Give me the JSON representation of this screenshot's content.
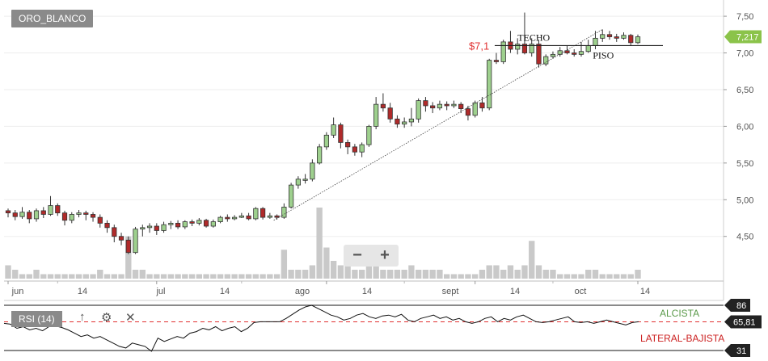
{
  "ticker": "ORO_BLANCO",
  "zoom": {
    "minus": "−",
    "plus": "+"
  },
  "indicator": {
    "label": "RSI (14)",
    "up_icon": "↑",
    "gear_icon": "⚙",
    "close_icon": "✕"
  },
  "colors": {
    "up": "#9ed08e",
    "down": "#b02a2a",
    "volume": "#c9c9c9",
    "price_tag": "#8bc34a",
    "annotation_red": "#e03030",
    "alcista": "#5a9a4a",
    "lateral": "#cc2222"
  },
  "annotations": {
    "techo": "TECHO",
    "piso": "PISO",
    "level_label": "$7,1",
    "alcista": "ALCISTA",
    "lateral": "LATERAL-BAJISTA"
  },
  "chart_data": [
    {
      "type": "candlestick",
      "x_tick_labels": [
        "jun",
        "14",
        "jul",
        "14",
        "ago",
        "14",
        "sept",
        "14",
        "oct",
        "14"
      ],
      "y_ticks": [
        "7,50",
        "7,00",
        "6,50",
        "6,00",
        "5,50",
        "5,00",
        "4,50"
      ],
      "ylim": [
        4.2,
        7.6
      ],
      "last_price": "7,217",
      "horizontal_level": 7.1,
      "candles": [
        [
          4.85,
          4.82,
          4.88,
          4.76
        ],
        [
          4.82,
          4.77,
          4.86,
          4.72
        ],
        [
          4.77,
          4.83,
          4.9,
          4.74
        ],
        [
          4.83,
          4.74,
          4.86,
          4.68
        ],
        [
          4.74,
          4.85,
          4.88,
          4.7
        ],
        [
          4.85,
          4.8,
          4.9,
          4.75
        ],
        [
          4.8,
          4.92,
          5.05,
          4.78
        ],
        [
          4.92,
          4.82,
          4.95,
          4.78
        ],
        [
          4.82,
          4.72,
          4.85,
          4.65
        ],
        [
          4.72,
          4.8,
          4.83,
          4.68
        ],
        [
          4.8,
          4.82,
          4.86,
          4.76
        ],
        [
          4.82,
          4.8,
          4.85,
          4.72
        ],
        [
          4.8,
          4.76,
          4.83,
          4.7
        ],
        [
          4.76,
          4.68,
          4.8,
          4.62
        ],
        [
          4.68,
          4.62,
          4.72,
          4.55
        ],
        [
          4.62,
          4.5,
          4.66,
          4.42
        ],
        [
          4.5,
          4.45,
          4.55,
          4.38
        ],
        [
          4.45,
          4.28,
          4.5,
          4.26
        ],
        [
          4.28,
          4.6,
          4.63,
          4.26
        ],
        [
          4.6,
          4.62,
          4.66,
          4.5
        ],
        [
          4.62,
          4.64,
          4.68,
          4.55
        ],
        [
          4.64,
          4.58,
          4.68,
          4.52
        ],
        [
          4.58,
          4.66,
          4.7,
          4.55
        ],
        [
          4.66,
          4.68,
          4.71,
          4.6
        ],
        [
          4.68,
          4.63,
          4.72,
          4.6
        ],
        [
          4.63,
          4.7,
          4.72,
          4.6
        ],
        [
          4.7,
          4.68,
          4.73,
          4.64
        ],
        [
          4.68,
          4.72,
          4.75,
          4.65
        ],
        [
          4.72,
          4.64,
          4.74,
          4.62
        ],
        [
          4.64,
          4.7,
          4.73,
          4.62
        ],
        [
          4.7,
          4.76,
          4.78,
          4.68
        ],
        [
          4.76,
          4.74,
          4.8,
          4.7
        ],
        [
          4.74,
          4.76,
          4.79,
          4.72
        ],
        [
          4.76,
          4.78,
          4.82,
          4.75
        ],
        [
          4.78,
          4.74,
          4.82,
          4.72
        ],
        [
          4.74,
          4.88,
          4.9,
          4.72
        ],
        [
          4.88,
          4.76,
          4.9,
          4.73
        ],
        [
          4.76,
          4.78,
          4.82,
          4.74
        ],
        [
          4.78,
          4.76,
          4.8,
          4.73
        ],
        [
          4.76,
          4.9,
          4.95,
          4.74
        ],
        [
          4.9,
          5.2,
          5.23,
          4.88
        ],
        [
          5.2,
          5.28,
          5.32,
          5.15
        ],
        [
          5.28,
          5.28,
          5.35,
          5.22
        ],
        [
          5.28,
          5.5,
          5.55,
          5.25
        ],
        [
          5.5,
          5.72,
          5.76,
          5.48
        ],
        [
          5.72,
          5.88,
          5.92,
          5.68
        ],
        [
          5.88,
          6.02,
          6.12,
          5.84
        ],
        [
          6.02,
          5.78,
          6.05,
          5.7
        ],
        [
          5.78,
          5.72,
          5.82,
          5.62
        ],
        [
          5.72,
          5.65,
          5.76,
          5.6
        ],
        [
          5.65,
          5.75,
          5.78,
          5.58
        ],
        [
          5.75,
          6.0,
          6.02,
          5.72
        ],
        [
          6.0,
          6.3,
          6.4,
          5.96
        ],
        [
          6.3,
          6.25,
          6.45,
          6.2
        ],
        [
          6.25,
          6.1,
          6.32,
          6.05
        ],
        [
          6.1,
          6.03,
          6.15,
          5.98
        ],
        [
          6.03,
          6.06,
          6.12,
          5.98
        ],
        [
          6.06,
          6.1,
          6.25,
          6.0
        ],
        [
          6.1,
          6.35,
          6.38,
          6.05
        ],
        [
          6.35,
          6.28,
          6.4,
          6.2
        ],
        [
          6.28,
          6.25,
          6.33,
          6.18
        ],
        [
          6.25,
          6.3,
          6.35,
          6.22
        ],
        [
          6.3,
          6.28,
          6.34,
          6.22
        ],
        [
          6.28,
          6.3,
          6.35,
          6.25
        ],
        [
          6.3,
          6.24,
          6.33,
          6.18
        ],
        [
          6.24,
          6.15,
          6.28,
          6.08
        ],
        [
          6.15,
          6.32,
          6.35,
          6.12
        ],
        [
          6.32,
          6.25,
          6.4,
          6.2
        ],
        [
          6.25,
          6.9,
          6.92,
          6.22
        ],
        [
          6.9,
          6.88,
          7.0,
          6.85
        ],
        [
          6.88,
          7.15,
          7.18,
          6.85
        ],
        [
          7.15,
          7.05,
          7.3,
          7.0
        ],
        [
          7.05,
          7.12,
          7.2,
          6.98
        ],
        [
          7.12,
          7.0,
          7.55,
          6.98
        ],
        [
          7.0,
          7.12,
          7.2,
          6.95
        ],
        [
          7.12,
          6.85,
          7.18,
          6.8
        ],
        [
          6.85,
          6.95,
          6.98,
          6.82
        ],
        [
          6.95,
          6.98,
          7.02,
          6.92
        ],
        [
          6.98,
          7.03,
          7.08,
          6.95
        ],
        [
          7.03,
          7.0,
          7.1,
          6.98
        ],
        [
          7.0,
          6.98,
          7.05,
          6.95
        ],
        [
          6.98,
          7.02,
          7.15,
          6.95
        ],
        [
          7.02,
          7.1,
          7.18,
          7.0
        ],
        [
          7.1,
          7.2,
          7.3,
          7.05
        ],
        [
          7.2,
          7.25,
          7.32,
          7.15
        ],
        [
          7.25,
          7.22,
          7.3,
          7.18
        ],
        [
          7.22,
          7.2,
          7.26,
          7.15
        ],
        [
          7.2,
          7.24,
          7.28,
          7.18
        ],
        [
          7.24,
          7.14,
          7.26,
          7.1
        ],
        [
          7.14,
          7.22,
          7.25,
          7.12
        ]
      ],
      "volume": [
        3,
        2,
        1,
        1,
        2,
        1,
        1,
        1,
        1,
        1,
        1,
        1,
        1,
        2,
        1,
        1,
        1,
        1,
        2,
        2,
        1,
        1,
        1,
        1,
        1,
        1,
        1,
        1,
        1,
        1,
        1,
        1,
        1,
        1,
        1,
        1,
        1,
        1,
        1,
        3,
        2,
        2,
        2,
        3,
        6,
        7,
        4,
        3,
        3,
        2,
        2,
        3,
        3,
        2,
        2,
        2,
        2,
        3,
        2,
        2,
        2,
        2,
        1,
        1,
        1,
        1,
        1,
        2,
        3,
        3,
        2,
        3,
        2,
        3,
        4,
        3,
        2,
        2,
        1,
        1,
        1,
        1,
        2,
        2,
        1,
        1,
        1,
        1,
        1,
        2
      ],
      "extra_volume_spikes": {
        "17": 9.5,
        "39": 6.5,
        "44": 16,
        "74": 8.5
      }
    },
    {
      "type": "line",
      "title": "RSI (14)",
      "ylim": [
        31,
        86
      ],
      "reference_levels": [
        "86",
        "31"
      ],
      "current_value": "65,81",
      "threshold": 65.81,
      "values": [
        64,
        63,
        58,
        60,
        56,
        58,
        55,
        60,
        61,
        59,
        56,
        52,
        48,
        50,
        46,
        48,
        44,
        40,
        36,
        34,
        40,
        38,
        36,
        30,
        46,
        42,
        45,
        48,
        46,
        52,
        54,
        58,
        56,
        60,
        55,
        58,
        60,
        54,
        58,
        65,
        66,
        66,
        66,
        66,
        70,
        75,
        80,
        84,
        86,
        82,
        78,
        74,
        72,
        68,
        70,
        74,
        76,
        72,
        70,
        73,
        74,
        72,
        75,
        68,
        66,
        70,
        72,
        74,
        70,
        72,
        68,
        70,
        66,
        64,
        66,
        70,
        72,
        66,
        70,
        68,
        72,
        74,
        70,
        66,
        65,
        66,
        68,
        70,
        72,
        66,
        65,
        66,
        64,
        66,
        68,
        66,
        64,
        62,
        65,
        66
      ]
    }
  ]
}
